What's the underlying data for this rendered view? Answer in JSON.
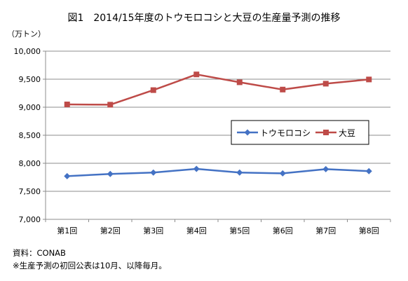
{
  "title": "図1　2014/15年度のトウモロコシと大豆の生産量予測の推移",
  "unit_label": "（万トン）",
  "source": "資料：CONAB",
  "note": "※生産予測の初回公表は10月、以降毎月。",
  "colors": {
    "corn": "#4472c4",
    "soy": "#be4b48",
    "grid": "#8c8c8c",
    "axis": "#8c8c8c"
  },
  "chart_data": {
    "type": "line",
    "title": "図1　2014/15年度のトウモロコシと大豆の生産量予測の推移",
    "ylabel": "（万トン）",
    "xlabel": "",
    "categories": [
      "第1回",
      "第2回",
      "第3回",
      "第4回",
      "第5回",
      "第6回",
      "第7回",
      "第8回"
    ],
    "ylim": [
      7000,
      10000
    ],
    "yticks": [
      7000,
      7500,
      8000,
      8500,
      9000,
      9500,
      10000
    ],
    "ytick_labels": [
      "7,000",
      "7,500",
      "8,000",
      "8,500",
      "9,000",
      "9,500",
      "10,000"
    ],
    "grid": true,
    "legend_position": "right",
    "series": [
      {
        "name": "トウモロコシ",
        "values": [
          7770,
          7810,
          7835,
          7900,
          7835,
          7820,
          7895,
          7860
        ],
        "marker": "diamond"
      },
      {
        "name": "大豆",
        "values": [
          9050,
          9045,
          9305,
          9585,
          9445,
          9315,
          9420,
          9495
        ],
        "marker": "square"
      }
    ]
  }
}
